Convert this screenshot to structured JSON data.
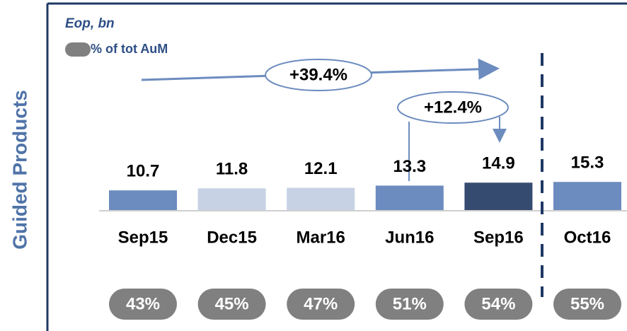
{
  "chart_data": {
    "type": "bar",
    "title": "Guided Products",
    "subtitle": "Eop, bn",
    "categories": [
      "Sep15",
      "Dec15",
      "Mar16",
      "Jun16",
      "Sep16",
      "Oct16"
    ],
    "values": [
      10.7,
      11.8,
      12.1,
      13.3,
      14.9,
      15.3
    ],
    "colors": [
      "#6c8cbf",
      "#c7d2e4",
      "#c7d2e4",
      "#6c8cbf",
      "#364b70",
      "#6c8cbf"
    ],
    "share": {
      "name": "% of tot AuM",
      "color": "#808080",
      "values": [
        43,
        45,
        47,
        51,
        54,
        55
      ],
      "value_labels": [
        "43%",
        "45%",
        "47%",
        "51%",
        "54%",
        "55%"
      ]
    },
    "annotations": [
      "+39.4%",
      "+12.4%"
    ]
  }
}
